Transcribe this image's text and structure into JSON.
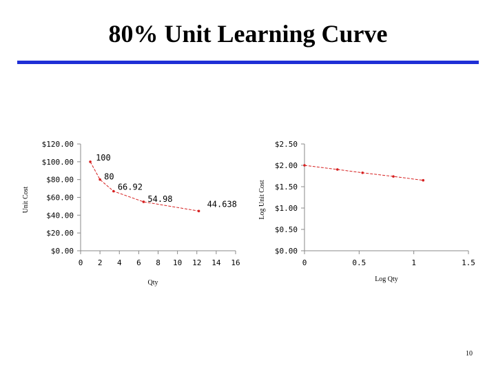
{
  "slide": {
    "title": "80% Unit Learning Curve",
    "page_number": "10",
    "rule_color": "#1f2fd6"
  },
  "chart_data": [
    {
      "type": "scatter",
      "title": "",
      "xlabel": "Qty",
      "ylabel": "Unit Cost",
      "xlim": [
        0,
        16
      ],
      "ylim": [
        0,
        120
      ],
      "xticks": [
        "0",
        "2",
        "4",
        "6",
        "8",
        "10",
        "12",
        "14",
        "16"
      ],
      "yticks": [
        "$0.00",
        "$20.00",
        "$40.00",
        "$60.00",
        "$80.00",
        "$100.00",
        "$120.00"
      ],
      "grid": false,
      "line_color": "#d62020",
      "x": [
        1,
        2,
        3.4,
        6.5,
        12.2
      ],
      "y": [
        100,
        80,
        66.92,
        54.98,
        44.638
      ],
      "data_labels": [
        "100",
        "80",
        "66.92",
        "54.98",
        "44.638"
      ]
    },
    {
      "type": "scatter",
      "title": "",
      "xlabel": "Log Qty",
      "ylabel": "Log Unit Cost",
      "xlim": [
        0,
        1.5
      ],
      "ylim": [
        0,
        2.5
      ],
      "xticks": [
        "0",
        "0.5",
        "1",
        "1.5"
      ],
      "yticks": [
        "$0.00",
        "$0.50",
        "$1.00",
        "$1.50",
        "$2.00",
        "$2.50"
      ],
      "grid": false,
      "line_color": "#d62020",
      "x": [
        0,
        0.301,
        0.531,
        0.813,
        1.086
      ],
      "y": [
        2.0,
        1.903,
        1.826,
        1.74,
        1.65
      ]
    }
  ]
}
